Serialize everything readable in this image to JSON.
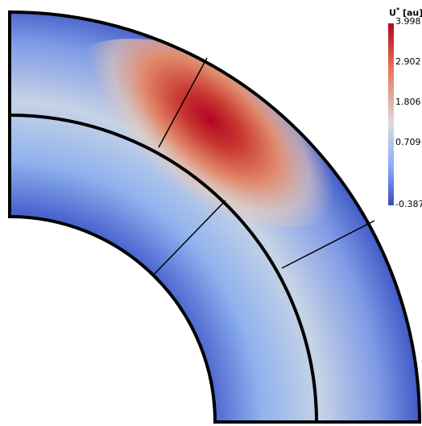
{
  "colorbar": {
    "title_main": "U",
    "title_sup": "*",
    "title_unit": " [au]",
    "tick_labels": [
      "3.998",
      "2.902",
      "1.806",
      "0.709",
      "-0.387"
    ]
  },
  "colors": {
    "low": "#3b4cc0",
    "mid": "#dedcdb",
    "high": "#b40426"
  }
}
